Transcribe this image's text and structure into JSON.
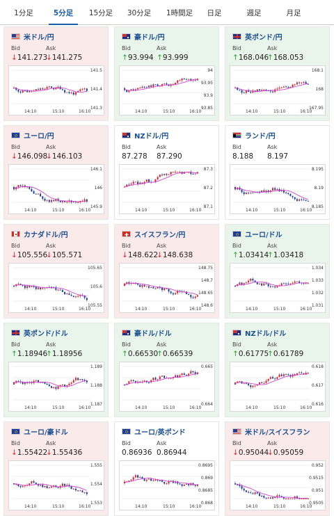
{
  "tabs": [
    {
      "label": "1分足",
      "active": false
    },
    {
      "label": "5分足",
      "active": true
    },
    {
      "label": "15分足",
      "active": false
    },
    {
      "label": "30分足",
      "active": false
    },
    {
      "label": "1時間足",
      "active": false
    },
    {
      "label": "日足",
      "active": false
    },
    {
      "label": "週足",
      "active": false
    },
    {
      "label": "月足",
      "active": false
    }
  ],
  "labels": {
    "bid": "Bid",
    "ask": "Ask"
  },
  "colors": {
    "down_bg": "#fbeaea",
    "up_bg": "#e9f4ea",
    "bull": "#d6232a",
    "bear": "#1a3f9f",
    "ma": "#d044d0"
  },
  "cards": [
    {
      "pair": "米ドル/円",
      "flag": "us",
      "dir": "down",
      "bid": "141.273",
      "ask": "141.275",
      "yticks": [
        "141.5",
        "141.4",
        "141.3"
      ],
      "xticks": [
        "14:10",
        "15:10",
        "16:10"
      ]
    },
    {
      "pair": "豪ドル/円",
      "flag": "au",
      "dir": "up",
      "bid": "93.994",
      "ask": "93.999",
      "yticks": [
        "94",
        "93.95",
        "93.9",
        "93.85"
      ],
      "xticks": [
        "14:10",
        "15:10",
        "16:10"
      ]
    },
    {
      "pair": "英ポンド/円",
      "flag": "gb",
      "dir": "up",
      "bid": "168.046",
      "ask": "168.053",
      "yticks": [
        "168.1",
        "168",
        "167.95"
      ],
      "xticks": [
        "14:10",
        "15:10",
        "16:10"
      ]
    },
    {
      "pair": "ユーロ/円",
      "flag": "eu",
      "dir": "down",
      "bid": "146.098",
      "ask": "146.103",
      "yticks": [
        "146.1",
        "146",
        "145.9"
      ],
      "xticks": [
        "14:10",
        "15:10",
        "16:10"
      ]
    },
    {
      "pair": "NZドル/円",
      "flag": "nz",
      "dir": "flat",
      "bid": "87.278",
      "ask": "87.290",
      "yticks": [
        "87.3",
        "87.2",
        "87.1"
      ],
      "xticks": [
        "14:10",
        "15:10",
        "16:10"
      ]
    },
    {
      "pair": "ランド/円",
      "flag": "za",
      "dir": "flat",
      "bid": "8.188",
      "ask": "8.197",
      "yticks": [
        "8.195",
        "8.19",
        "8.185"
      ],
      "xticks": [
        "14:10",
        "15:10",
        "16:10"
      ]
    },
    {
      "pair": "カナダドル/円",
      "flag": "ca",
      "dir": "down",
      "bid": "105.556",
      "ask": "105.571",
      "yticks": [
        "105.65",
        "105.6",
        "105.55"
      ],
      "xticks": [
        "14:10",
        "15:10",
        "16:10"
      ]
    },
    {
      "pair": "スイスフラン/円",
      "flag": "ch",
      "dir": "down",
      "bid": "148.622",
      "ask": "148.638",
      "yticks": [
        "148.75",
        "148.7",
        "148.65",
        "148.6"
      ],
      "xticks": [
        "14:10",
        "15:10",
        "16:10"
      ]
    },
    {
      "pair": "ユーロ/ドル",
      "flag": "eu",
      "dir": "up",
      "bid": "1.03414",
      "ask": "1.03418",
      "yticks": [
        "1.034",
        "1.033",
        "1.032",
        "1.031"
      ],
      "xticks": [
        "14:10",
        "15:10",
        "16:10"
      ]
    },
    {
      "pair": "英ポンド/ドル",
      "flag": "gb",
      "dir": "up",
      "bid": "1.18946",
      "ask": "1.18956",
      "yticks": [
        "1.189",
        "1.188",
        "1.187"
      ],
      "xticks": [
        "14:10",
        "15:10",
        "16:10"
      ]
    },
    {
      "pair": "豪ドル/ドル",
      "flag": "au",
      "dir": "up",
      "bid": "0.66530",
      "ask": "0.66539",
      "yticks": [
        "0.665",
        "0.664"
      ],
      "xticks": [
        "14:10",
        "15:10",
        "16:10"
      ]
    },
    {
      "pair": "NZドル/ドル",
      "flag": "nz",
      "dir": "up",
      "bid": "0.61775",
      "ask": "0.61789",
      "yticks": [
        "0.618",
        "0.617",
        "0.616"
      ],
      "xticks": [
        "14:10",
        "15:10",
        "16:10"
      ]
    },
    {
      "pair": "ユーロ/豪ドル",
      "flag": "eu",
      "dir": "down",
      "bid": "1.55422",
      "ask": "1.55436",
      "yticks": [
        "1.555",
        "1.554",
        "1.553"
      ],
      "xticks": [
        "14:10",
        "15:10",
        "16:10"
      ]
    },
    {
      "pair": "ユーロ/英ポンド",
      "flag": "eu",
      "dir": "flat",
      "bid": "0.86936",
      "ask": "0.86944",
      "yticks": [
        "0.8695",
        "0.869",
        "0.8685",
        "0.868"
      ],
      "xticks": [
        "14:10",
        "15:10",
        "16:10"
      ]
    },
    {
      "pair": "米ドル/スイスフラン",
      "flag": "us",
      "dir": "down",
      "bid": "0.95044",
      "ask": "0.95059",
      "yticks": [
        "0.952",
        "0.9515",
        "0.951",
        "0.9505"
      ],
      "xticks": [
        "14:10",
        "15:10",
        "16:10"
      ]
    }
  ]
}
